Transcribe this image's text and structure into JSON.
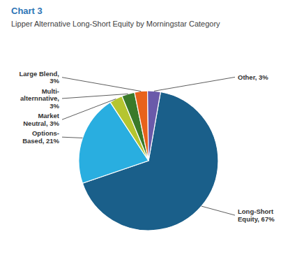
{
  "chart_data": {
    "type": "pie",
    "title": "Chart 3",
    "subtitle": "Lipper Alternative Long-Short Equity by Morningstar Category",
    "categories": [
      "Long-Short\nEquity, 67%",
      "Options-\nBased, 21%",
      "Market\nNeutral, 3%",
      "Multi-\nalternnative,\n3%",
      "Large Blend,\n3%",
      "Other, 3%"
    ],
    "values": [
      67,
      21,
      3,
      3,
      3,
      3
    ],
    "colors": [
      "#1a5f8a",
      "#29aee0",
      "#b5c530",
      "#3a7a2a",
      "#e8621a",
      "#6a5aaa"
    ]
  }
}
